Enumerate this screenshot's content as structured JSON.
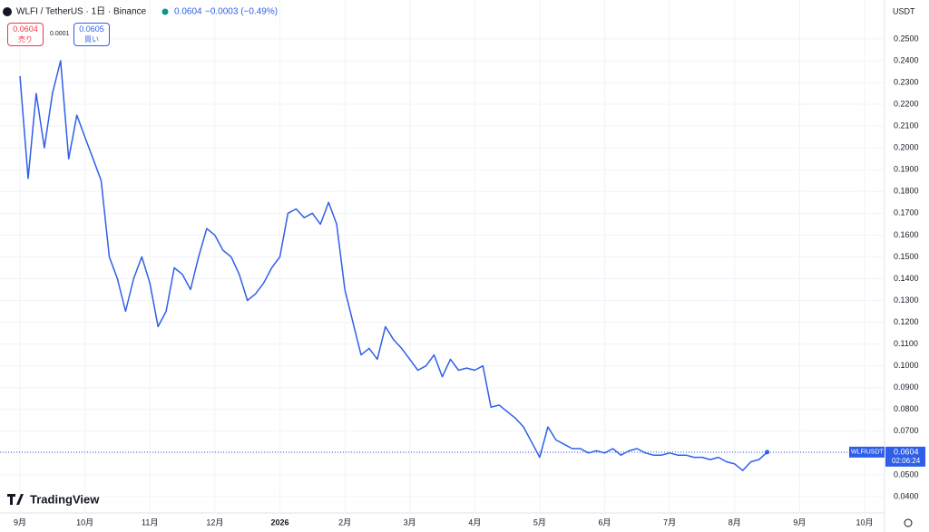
{
  "header": {
    "symbol": "WLFI / TetherUS · 1日 · Binance",
    "price": "0.0604",
    "change": "−0.0003 (−0.49%)",
    "sell_price": "0.0604",
    "sell_label": "売り",
    "spread": "0.0001",
    "buy_price": "0.0605",
    "buy_label": "買い",
    "currency": "USDT",
    "brand": "TradingView"
  },
  "chart_data": {
    "type": "line",
    "color": "#2f5fe8",
    "grid": true,
    "categories": [
      "9月",
      null,
      null,
      null,
      null,
      null,
      null,
      null,
      "10月",
      null,
      null,
      null,
      null,
      null,
      null,
      null,
      "11月",
      null,
      null,
      null,
      null,
      null,
      null,
      null,
      "12月",
      null,
      null,
      null,
      null,
      null,
      null,
      null,
      "2026",
      null,
      null,
      null,
      null,
      null,
      null,
      null,
      "2月",
      null,
      null,
      null,
      null,
      null,
      null,
      null,
      "3月",
      null,
      null,
      null,
      null,
      null,
      null,
      null,
      "4月",
      null,
      null,
      null,
      null,
      null,
      null,
      null,
      "5月",
      null,
      null,
      null,
      null,
      null,
      null,
      null,
      "6月",
      null,
      null,
      null,
      null,
      null,
      null,
      null,
      "7月",
      null,
      null,
      null,
      null,
      null,
      null,
      null,
      "8月",
      null,
      null,
      null,
      null,
      null,
      null,
      null,
      "9月",
      null,
      null,
      null,
      null,
      null,
      null,
      null,
      "10月"
    ],
    "values": [
      0.233,
      0.186,
      0.225,
      0.2,
      0.225,
      0.24,
      0.195,
      0.215,
      0.205,
      0.195,
      0.185,
      0.15,
      0.14,
      0.125,
      0.14,
      0.15,
      0.138,
      0.118,
      0.125,
      0.145,
      0.142,
      0.135,
      0.15,
      0.163,
      0.16,
      0.153,
      0.15,
      0.142,
      0.13,
      0.133,
      0.138,
      0.145,
      0.15,
      0.17,
      0.172,
      0.168,
      0.17,
      0.165,
      0.175,
      0.165,
      0.135,
      0.12,
      0.105,
      0.108,
      0.103,
      0.118,
      0.112,
      0.108,
      0.103,
      0.098,
      0.1,
      0.105,
      0.095,
      0.103,
      0.098,
      0.099,
      0.098,
      0.1,
      0.081,
      0.082,
      0.079,
      0.076,
      0.072,
      0.065,
      0.058,
      0.072,
      0.066,
      0.064,
      0.062,
      0.062,
      0.06,
      0.061,
      0.06,
      0.062,
      0.059,
      0.061,
      0.062,
      0.06,
      0.059,
      0.059,
      0.06,
      0.059,
      0.059,
      0.058,
      0.058,
      0.057,
      0.058,
      0.056,
      0.055,
      0.052,
      0.056,
      0.057,
      0.0604,
      null,
      null,
      null,
      null,
      null,
      null,
      null,
      null,
      null,
      null,
      null,
      null
    ],
    "ylim": [
      0.0329,
      0.2658
    ],
    "yticks": [
      {
        "value": 0.04,
        "label": "0.0400"
      },
      {
        "value": 0.05,
        "label": "0.0500"
      },
      {
        "value": 0.06,
        "label": "0.0600"
      },
      {
        "value": 0.07,
        "label": "0.0700"
      },
      {
        "value": 0.08,
        "label": "0.0800"
      },
      {
        "value": 0.09,
        "label": "0.0900"
      },
      {
        "value": 0.1,
        "label": "0.1000"
      },
      {
        "value": 0.11,
        "label": "0.1100"
      },
      {
        "value": 0.12,
        "label": "0.1200"
      },
      {
        "value": 0.13,
        "label": "0.1300"
      },
      {
        "value": 0.14,
        "label": "0.1400"
      },
      {
        "value": 0.15,
        "label": "0.1500"
      },
      {
        "value": 0.16,
        "label": "0.1600"
      },
      {
        "value": 0.17,
        "label": "0.1700"
      },
      {
        "value": 0.18,
        "label": "0.1800"
      },
      {
        "value": 0.19,
        "label": "0.1900"
      },
      {
        "value": 0.2,
        "label": "0.2000"
      },
      {
        "value": 0.21,
        "label": "0.2100"
      },
      {
        "value": 0.22,
        "label": "0.2200"
      },
      {
        "value": 0.23,
        "label": "0.2300"
      },
      {
        "value": 0.24,
        "label": "0.2400"
      },
      {
        "value": 0.25,
        "label": "0.2500"
      }
    ],
    "last_symbol": "WLFIUSDT",
    "last_price": 0.0604,
    "countdown": "02:06:24"
  }
}
